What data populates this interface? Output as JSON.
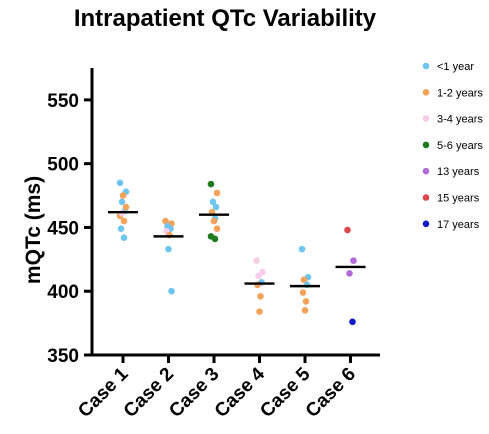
{
  "chart_data": {
    "type": "scatter",
    "title": "Intrapatient QTc Variability",
    "ylabel": "mQTc (ms)",
    "xlabel": "",
    "ylim": [
      350,
      575
    ],
    "yticks": [
      350,
      400,
      450,
      500,
      550
    ],
    "categories": [
      "Case 1",
      "Case 2",
      "Case 3",
      "Case 4",
      "Case 5",
      "Case 6"
    ],
    "grid": false,
    "legend_position": "right",
    "legend": [
      {
        "label": "<1 year",
        "color": "#6ec6f0"
      },
      {
        "label": "1-2 years",
        "color": "#f5a35a"
      },
      {
        "label": "3-4 years",
        "color": "#f7cdea"
      },
      {
        "label": "5-6 years",
        "color": "#1f7a1f"
      },
      {
        "label": "13 years",
        "color": "#b36ad6"
      },
      {
        "label": "15 years",
        "color": "#e0474c"
      },
      {
        "label": "17 years",
        "color": "#1018c8"
      }
    ],
    "means": [
      462,
      443,
      460,
      406,
      404,
      419
    ],
    "points": [
      {
        "case": "Case 1",
        "group": "<1 year",
        "y": 485
      },
      {
        "case": "Case 1",
        "group": "<1 year",
        "y": 478
      },
      {
        "case": "Case 1",
        "group": "<1 year",
        "y": 470
      },
      {
        "case": "Case 1",
        "group": "<1 year",
        "y": 463
      },
      {
        "case": "Case 1",
        "group": "<1 year",
        "y": 449
      },
      {
        "case": "Case 1",
        "group": "<1 year",
        "y": 442
      },
      {
        "case": "Case 1",
        "group": "1-2 years",
        "y": 475
      },
      {
        "case": "Case 1",
        "group": "1-2 years",
        "y": 466
      },
      {
        "case": "Case 1",
        "group": "1-2 years",
        "y": 459
      },
      {
        "case": "Case 1",
        "group": "1-2 years",
        "y": 455
      },
      {
        "case": "Case 1",
        "group": "3-4 years",
        "y": 461
      },
      {
        "case": "Case 2",
        "group": "1-2 years",
        "y": 455
      },
      {
        "case": "Case 2",
        "group": "1-2 years",
        "y": 453
      },
      {
        "case": "Case 2",
        "group": "<1 year",
        "y": 451
      },
      {
        "case": "Case 2",
        "group": "<1 year",
        "y": 449
      },
      {
        "case": "Case 2",
        "group": "3-4 years",
        "y": 447
      },
      {
        "case": "Case 2",
        "group": "1-2 years",
        "y": 444
      },
      {
        "case": "Case 2",
        "group": "<1 year",
        "y": 433
      },
      {
        "case": "Case 2",
        "group": "<1 year",
        "y": 400
      },
      {
        "case": "Case 3",
        "group": "5-6 years",
        "y": 484
      },
      {
        "case": "Case 3",
        "group": "1-2 years",
        "y": 477
      },
      {
        "case": "Case 3",
        "group": "<1 year",
        "y": 470
      },
      {
        "case": "Case 3",
        "group": "<1 year",
        "y": 466
      },
      {
        "case": "Case 3",
        "group": "1-2 years",
        "y": 462
      },
      {
        "case": "Case 3",
        "group": "<1 year",
        "y": 457
      },
      {
        "case": "Case 3",
        "group": "1-2 years",
        "y": 455
      },
      {
        "case": "Case 3",
        "group": "1-2 years",
        "y": 449
      },
      {
        "case": "Case 3",
        "group": "5-6 years",
        "y": 443
      },
      {
        "case": "Case 3",
        "group": "5-6 years",
        "y": 441
      },
      {
        "case": "Case 4",
        "group": "3-4 years",
        "y": 424
      },
      {
        "case": "Case 4",
        "group": "3-4 years",
        "y": 415
      },
      {
        "case": "Case 4",
        "group": "3-4 years",
        "y": 412
      },
      {
        "case": "Case 4",
        "group": "<1 year",
        "y": 407
      },
      {
        "case": "Case 4",
        "group": "1-2 years",
        "y": 405
      },
      {
        "case": "Case 4",
        "group": "1-2 years",
        "y": 396
      },
      {
        "case": "Case 4",
        "group": "1-2 years",
        "y": 384
      },
      {
        "case": "Case 5",
        "group": "<1 year",
        "y": 433
      },
      {
        "case": "Case 5",
        "group": "<1 year",
        "y": 411
      },
      {
        "case": "Case 5",
        "group": "1-2 years",
        "y": 409
      },
      {
        "case": "Case 5",
        "group": "<1 year",
        "y": 405
      },
      {
        "case": "Case 5",
        "group": "1-2 years",
        "y": 399
      },
      {
        "case": "Case 5",
        "group": "1-2 years",
        "y": 392
      },
      {
        "case": "Case 5",
        "group": "1-2 years",
        "y": 385
      },
      {
        "case": "Case 6",
        "group": "15 years",
        "y": 448
      },
      {
        "case": "Case 6",
        "group": "13 years",
        "y": 424
      },
      {
        "case": "Case 6",
        "group": "13 years",
        "y": 414
      },
      {
        "case": "Case 6",
        "group": "17 years",
        "y": 376
      }
    ]
  }
}
